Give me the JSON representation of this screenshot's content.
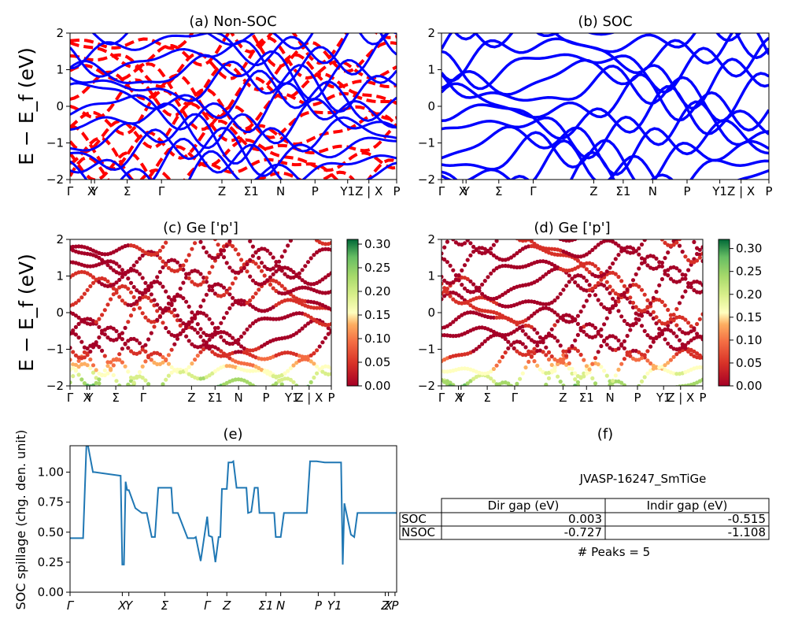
{
  "panels": {
    "a": {
      "title": "(a) Non-SOC"
    },
    "b": {
      "title": "(b) SOC"
    },
    "c": {
      "title": "(c)  Ge ['p']"
    },
    "d": {
      "title": "(d) Ge ['p']"
    },
    "e": {
      "title": "(e)"
    },
    "f": {
      "title": "(f)"
    }
  },
  "band_ylabel": "E − E_f (eV)",
  "spillage_ylabel": "SOC spillage (chg. den. unit)",
  "band_yticks": [
    "2",
    "1",
    "0",
    "−1",
    "−2"
  ],
  "colorbar_c_ticks": [
    "0.30",
    "0.25",
    "0.20",
    "0.15",
    "0.10",
    "0.05",
    "0.00"
  ],
  "colorbar_d_ticks": [
    "0.30",
    "0.25",
    "0.20",
    "0.15",
    "0.10",
    "0.05",
    "0.00"
  ],
  "spillage_yticks": [
    "1.00",
    "0.75",
    "0.50",
    "0.25",
    "0.00"
  ],
  "kpath_labels": [
    "Γ",
    "X",
    "Y",
    "Σ",
    "Γ",
    "Z",
    "Σ1",
    "N",
    "P",
    "Y1",
    "Z | X",
    "P"
  ],
  "kpath_e_labels": [
    "Γ",
    "X",
    "Y",
    "Σ",
    "Γ",
    "Z",
    "Σ1",
    "N",
    "P",
    "Y1",
    "Z",
    "X",
    "P"
  ],
  "table": {
    "material": "JVASP-16247_SmTiGe",
    "header": [
      "",
      "Dir gap (eV)",
      "Indir gap (eV)"
    ],
    "rows": [
      [
        "SOC",
        "0.003",
        "-0.515"
      ],
      [
        "NSOC",
        "-0.727",
        "-1.108"
      ]
    ],
    "peaks": "# Peaks = 5"
  },
  "colors": {
    "nonsoc_a": "#ff0000",
    "soc": "#0000ff",
    "spillage": "#1f77b4",
    "colormap": "RdYlGn"
  },
  "chart_data": [
    {
      "type": "line",
      "panel": "a",
      "title": "(a) Non-SOC",
      "ylabel": "E − E_f (eV)",
      "ylim": [
        -2,
        2
      ],
      "series": [],
      "line_styles": [
        "red dashed",
        "blue solid"
      ],
      "x_tick_labels": [
        "Γ",
        "X",
        "Y",
        "Σ",
        "Γ",
        "Z",
        "Σ1",
        "N",
        "P",
        "Y1",
        "Z | X",
        "P"
      ]
    },
    {
      "type": "line",
      "panel": "b",
      "title": "(b) SOC",
      "ylim": [
        -2,
        2
      ],
      "series": [],
      "line_styles": [
        "blue solid"
      ],
      "x_tick_labels": [
        "Γ",
        "X",
        "Y",
        "Σ",
        "Γ",
        "Z",
        "Σ1",
        "N",
        "P",
        "Y1",
        "Z | X",
        "P"
      ]
    },
    {
      "type": "scatter",
      "panel": "c",
      "title": "(c)  Ge ['p']",
      "ylabel": "E − E_f (eV)",
      "ylim": [
        -2,
        2
      ],
      "colorbar_range": [
        0.0,
        0.31
      ],
      "colormap": "RdYlGn",
      "x_tick_labels": [
        "Γ",
        "X",
        "Y",
        "Σ",
        "Γ",
        "Z",
        "Σ1",
        "N",
        "P",
        "Y1",
        "Z | X",
        "P"
      ]
    },
    {
      "type": "scatter",
      "panel": "d",
      "title": "(d) Ge ['p']",
      "ylim": [
        -2,
        2
      ],
      "colorbar_range": [
        0.0,
        0.32
      ],
      "colormap": "RdYlGn",
      "x_tick_labels": [
        "Γ",
        "X",
        "Y",
        "Σ",
        "Γ",
        "Z",
        "Σ1",
        "N",
        "P",
        "Y1",
        "Z | X",
        "P"
      ]
    },
    {
      "type": "line",
      "panel": "e",
      "title": "(e)",
      "ylabel": "SOC spillage (chg. den. unit)",
      "ylim": [
        0,
        1.22
      ],
      "x_tick_labels": [
        "Γ",
        "X",
        "Y",
        "Σ",
        "Γ",
        "Z",
        "Σ1",
        "N",
        "P",
        "Y1",
        "Z",
        "X",
        "P"
      ],
      "x": [
        0,
        0.04,
        0.04,
        0.05,
        0.055,
        0.07,
        0.075,
        0.155,
        0.16,
        0.165,
        0.17,
        0.175,
        0.18,
        0.2,
        0.22,
        0.235,
        0.25,
        0.26,
        0.27,
        0.285,
        0.29,
        0.31,
        0.315,
        0.33,
        0.36,
        0.38,
        0.385,
        0.4,
        0.42,
        0.425,
        0.435,
        0.445,
        0.455,
        0.46,
        0.465,
        0.475,
        0.48,
        0.485,
        0.49,
        0.495,
        0.5,
        0.51,
        0.52,
        0.54,
        0.545,
        0.555,
        0.565,
        0.575,
        0.58,
        0.6,
        0.625,
        0.63,
        0.645,
        0.655,
        0.67,
        0.72,
        0.725,
        0.735,
        0.74,
        0.755,
        0.78,
        0.8,
        0.82,
        0.83,
        0.835,
        0.84,
        0.86,
        0.87,
        0.88,
        0.885,
        0.91,
        0.94,
        0.965,
        0.97,
        0.98,
        0.99,
        0.995,
        1.0
      ],
      "y": [
        0.45,
        0.45,
        0.45,
        1.22,
        1.22,
        1.0,
        1.0,
        0.97,
        0.23,
        0.23,
        0.92,
        0.85,
        0.85,
        0.7,
        0.66,
        0.66,
        0.46,
        0.46,
        0.87,
        0.87,
        0.87,
        0.87,
        0.66,
        0.66,
        0.45,
        0.45,
        0.46,
        0.26,
        0.63,
        0.47,
        0.46,
        0.25,
        0.46,
        0.46,
        0.86,
        0.86,
        0.86,
        1.08,
        1.08,
        1.08,
        1.09,
        0.87,
        0.87,
        0.87,
        0.66,
        0.67,
        0.87,
        0.87,
        0.66,
        0.66,
        0.66,
        0.46,
        0.46,
        0.66,
        0.66,
        0.66,
        0.66,
        1.09,
        1.09,
        1.09,
        1.08,
        1.08,
        1.08,
        1.08,
        0.23,
        0.74,
        0.48,
        0.46,
        0.66,
        0.66,
        0.66,
        0.66,
        0.66,
        0.66,
        0.66,
        0.66,
        0.66,
        0.66
      ]
    }
  ]
}
